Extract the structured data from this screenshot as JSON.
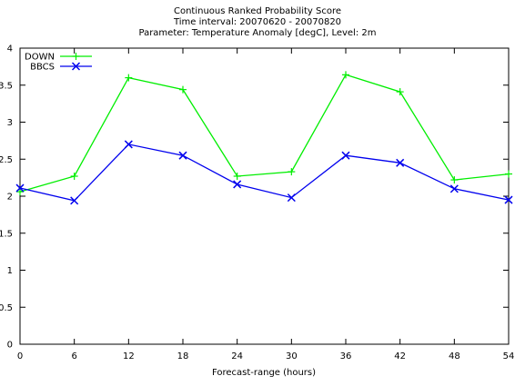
{
  "chart_data": {
    "type": "line",
    "title_lines": [
      "Continuous Ranked Probability Score",
      "Time interval: 20070620 - 20070820",
      "Parameter: Temperature Anomaly [degC], Level: 2m"
    ],
    "xlabel": "Forecast-range (hours)",
    "ylabel": "",
    "x": [
      0,
      6,
      12,
      18,
      24,
      30,
      36,
      42,
      48,
      54
    ],
    "xlim": [
      0,
      54
    ],
    "ylim": [
      0,
      4
    ],
    "x_tick_labels": [
      "0",
      "6",
      "12",
      "18",
      "24",
      "30",
      "36",
      "42",
      "48",
      "54"
    ],
    "y_tick_labels": [
      "0",
      "0.5",
      "1",
      "1.5",
      "2",
      "2.5",
      "3",
      "3.5",
      "4"
    ],
    "y_ticks": [
      0,
      0.5,
      1,
      1.5,
      2,
      2.5,
      3,
      3.5,
      4
    ],
    "grid": false,
    "legend_position": "top-left",
    "series": [
      {
        "name": "DOWN",
        "color": "#00ee00",
        "marker": "plus",
        "values": [
          2.06,
          2.27,
          3.6,
          3.44,
          2.27,
          2.33,
          3.64,
          3.41,
          2.22,
          2.3
        ]
      },
      {
        "name": "BBCS",
        "color": "#0000ee",
        "marker": "cross",
        "values": [
          2.11,
          1.94,
          2.7,
          2.55,
          2.16,
          1.98,
          2.55,
          2.45,
          2.1,
          1.95
        ]
      }
    ]
  }
}
